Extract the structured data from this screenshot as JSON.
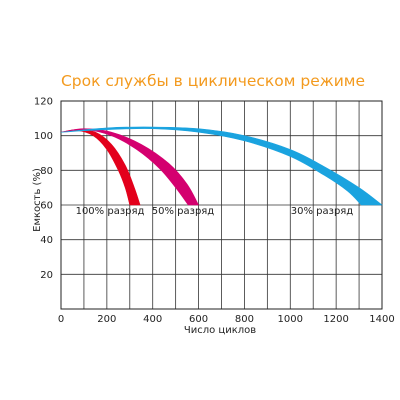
{
  "chart_data": {
    "type": "area",
    "title": "Срок службы в циклическом режиме",
    "xlabel": "Число циклов",
    "ylabel": "Емкость (%)",
    "xlim": [
      0,
      1400
    ],
    "ylim": [
      0,
      120
    ],
    "x_ticks": [
      0,
      200,
      400,
      600,
      800,
      1000,
      1200,
      1400
    ],
    "y_ticks": [
      20,
      40,
      60,
      80,
      100,
      120
    ],
    "grid": true,
    "legend": "none",
    "series": [
      {
        "name": "100% разряд",
        "color": "#e3001b",
        "upper": [
          [
            0,
            102
          ],
          [
            70,
            103.5
          ],
          [
            150,
            102
          ],
          [
            220,
            95
          ],
          [
            280,
            83
          ],
          [
            320,
            70
          ],
          [
            345,
            60
          ]
        ],
        "lower": [
          [
            0,
            102
          ],
          [
            70,
            103
          ],
          [
            140,
            100
          ],
          [
            200,
            92
          ],
          [
            250,
            80
          ],
          [
            280,
            70
          ],
          [
            300,
            60
          ]
        ]
      },
      {
        "name": "50% разряд",
        "color": "#d4006f",
        "upper": [
          [
            0,
            102
          ],
          [
            100,
            104
          ],
          [
            220,
            102
          ],
          [
            350,
            95
          ],
          [
            470,
            84
          ],
          [
            550,
            72
          ],
          [
            600,
            60
          ]
        ],
        "lower": [
          [
            0,
            102
          ],
          [
            100,
            103.5
          ],
          [
            220,
            100
          ],
          [
            330,
            92
          ],
          [
            430,
            81
          ],
          [
            500,
            70
          ],
          [
            555,
            60
          ]
        ]
      },
      {
        "name": "30% разряд",
        "color": "#1aa3df",
        "upper": [
          [
            0,
            102
          ],
          [
            200,
            104.5
          ],
          [
            400,
            105
          ],
          [
            600,
            104
          ],
          [
            800,
            100
          ],
          [
            1000,
            92
          ],
          [
            1150,
            82
          ],
          [
            1300,
            70
          ],
          [
            1400,
            60
          ]
        ],
        "lower": [
          [
            0,
            102
          ],
          [
            200,
            103.5
          ],
          [
            400,
            104
          ],
          [
            600,
            102
          ],
          [
            800,
            97
          ],
          [
            1000,
            88
          ],
          [
            1150,
            77
          ],
          [
            1250,
            68
          ],
          [
            1310,
            60
          ]
        ]
      }
    ]
  }
}
